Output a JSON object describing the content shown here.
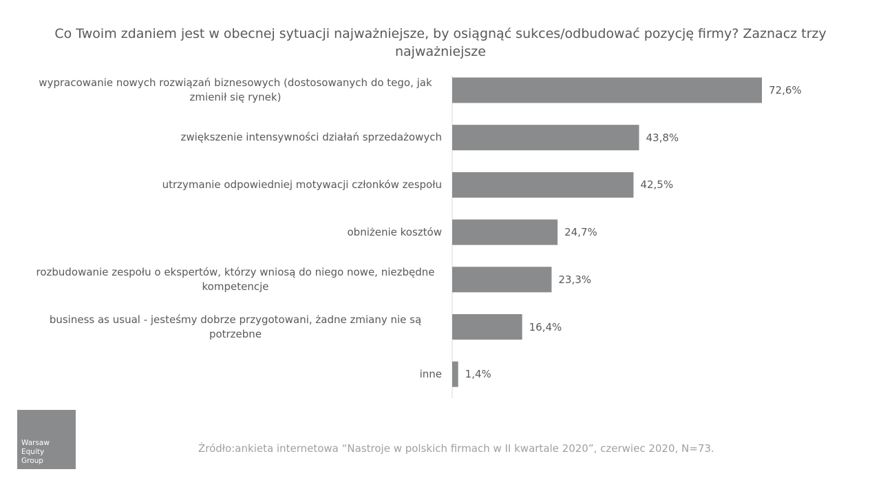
{
  "chart_data": {
    "type": "bar",
    "orientation": "horizontal",
    "title": "Co Twoim zdaniem jest w obecnej sytuacji najważniejsze, by osiągnąć sukces/odbudować pozycję firmy? Zaznacz trzy najważniejsze",
    "categories": [
      "wypracowanie nowych rozwiązań biznesowych (dostosowanych do tego, jak zmienił się rynek)",
      "zwiększenie intensywności działań sprzedażowych",
      "utrzymanie odpowiedniej motywacji członków zespołu",
      "obniżenie kosztów",
      "rozbudowanie zespołu o ekspertów, którzy wniosą do niego nowe, niezbędne kompetencje",
      "business as usual - jesteśmy dobrze przygotowani, żadne zmiany nie są potrzebne",
      "inne"
    ],
    "values": [
      72.6,
      43.8,
      42.5,
      24.7,
      23.3,
      16.4,
      1.4
    ],
    "value_labels": [
      "72,6%",
      "43,8%",
      "42,5%",
      "24,7%",
      "23,3%",
      "16,4%",
      "1,4%"
    ],
    "color": "#898b8d"
  },
  "source": "Źródło:ankieta internetowa “Nastroje w polskich firmach w II kwartale 2020”, czerwiec 2020, N=73.",
  "logo": "Warsaw Equity Group"
}
